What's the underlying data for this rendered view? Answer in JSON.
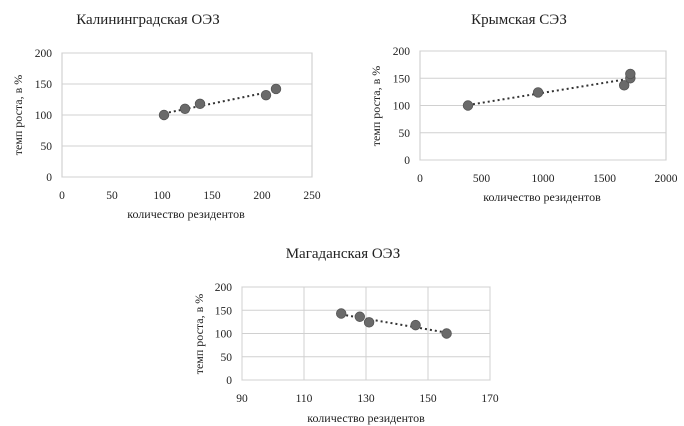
{
  "chart_data": [
    {
      "type": "scatter",
      "title": "Калининградская ОЭЗ",
      "xlabel": "количество резидентов",
      "ylabel": "темп роста, в %",
      "xlim": [
        0,
        250
      ],
      "ylim": [
        0,
        200
      ],
      "xticks": [
        0,
        50,
        100,
        150,
        200,
        250
      ],
      "yticks": [
        0,
        50,
        100,
        150,
        200
      ],
      "grid": "horizontal",
      "trendline": "linear-dotted",
      "points": [
        {
          "x": 102,
          "y": 100
        },
        {
          "x": 123,
          "y": 110
        },
        {
          "x": 138,
          "y": 118
        },
        {
          "x": 204,
          "y": 132
        },
        {
          "x": 214,
          "y": 142
        }
      ]
    },
    {
      "type": "scatter",
      "title": "Крымская СЭЗ",
      "xlabel": "количество резидентов",
      "ylabel": "темп роста, в %",
      "xlim": [
        0,
        2000
      ],
      "ylim": [
        0,
        200
      ],
      "xticks": [
        0,
        500,
        1000,
        1500,
        2000
      ],
      "yticks": [
        0,
        50,
        100,
        150,
        200
      ],
      "grid": "horizontal",
      "trendline": "linear-dotted",
      "points": [
        {
          "x": 390,
          "y": 100
        },
        {
          "x": 960,
          "y": 124
        },
        {
          "x": 1660,
          "y": 137
        },
        {
          "x": 1710,
          "y": 150
        },
        {
          "x": 1710,
          "y": 158
        }
      ]
    },
    {
      "type": "scatter",
      "title": "Магаданская ОЭЗ",
      "xlabel": "количество резидентов",
      "ylabel": "темп роста, в %",
      "xlim": [
        90,
        170
      ],
      "ylim": [
        0,
        200
      ],
      "xticks": [
        90,
        110,
        130,
        150,
        170
      ],
      "yticks": [
        0,
        50,
        100,
        150,
        200
      ],
      "grid": "both",
      "trendline": "linear-dotted",
      "points": [
        {
          "x": 122,
          "y": 143
        },
        {
          "x": 128,
          "y": 136
        },
        {
          "x": 131,
          "y": 124
        },
        {
          "x": 146,
          "y": 118
        },
        {
          "x": 156,
          "y": 100
        }
      ]
    }
  ]
}
